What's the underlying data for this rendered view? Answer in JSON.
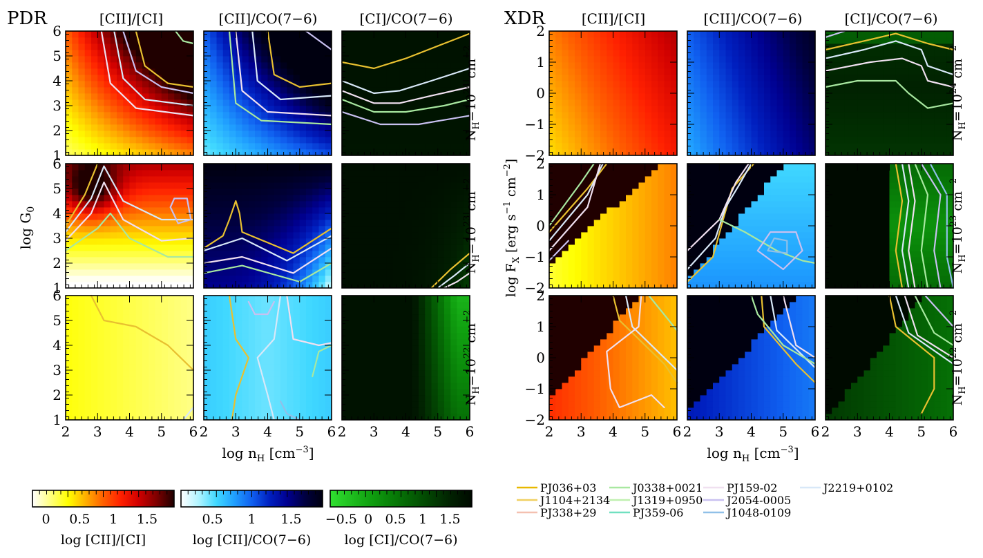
{
  "chart_data": {
    "type": "heatmap",
    "groups": [
      {
        "label": "PDR",
        "y_axis_label": "log G",
        "y_axis_subscript": "0",
        "y_ticks": [
          "1",
          "2",
          "3",
          "4",
          "5",
          "6"
        ]
      },
      {
        "label": "XDR",
        "y_axis_label": "log F",
        "y_axis_subscript": "X",
        "y_axis_units": " [erg s",
        "y_axis_units_sup": "−1",
        "y_axis_units_tail": " cm",
        "y_axis_units_sup2": "−2",
        "y_axis_units_close": "]",
        "y_ticks": [
          "−2",
          "−1",
          "0",
          "1",
          "2"
        ]
      }
    ],
    "column_titles": [
      "[CII]/[CI]",
      "[CII]/CO(7−6)",
      "[CI]/CO(7−6)"
    ],
    "rows": [
      {
        "label_main": "N",
        "label_sub": "H",
        "label_value": "=10",
        "label_exp": "24",
        "label_units": " cm",
        "label_units_exp": "−2"
      },
      {
        "label_main": "N",
        "label_sub": "H",
        "label_value": "=10",
        "label_exp": "23",
        "label_units": " cm",
        "label_units_exp": "−2"
      },
      {
        "label_main": "N",
        "label_sub": "H",
        "label_value": "=10",
        "label_exp": "22",
        "label_units": " cm",
        "label_units_exp": "−2"
      }
    ],
    "x_axis": {
      "label": "log n",
      "subscript": "H",
      "units": " [cm",
      "units_sup": "−3",
      "units_close": "]",
      "ticks": [
        "2",
        "3",
        "4",
        "5",
        "6"
      ],
      "range": [
        2,
        6
      ]
    },
    "y_ranges": {
      "PDR": [
        1,
        6
      ],
      "XDR": [
        -2,
        2
      ]
    },
    "colorbars": [
      {
        "label": "log [CII]/[CI]",
        "ticks": [
          "0",
          "0.5",
          "1",
          "1.5"
        ],
        "range": [
          -0.2,
          1.9
        ],
        "colors": [
          "#ffffff",
          "#ffff80",
          "#ffff00",
          "#ffb000",
          "#ff6000",
          "#ff2000",
          "#d00000",
          "#800000",
          "#200000"
        ]
      },
      {
        "label": "log [CII]/CO(7−6)",
        "ticks": [
          "0.5",
          "1",
          "1.5"
        ],
        "range": [
          0.1,
          1.9
        ],
        "colors": [
          "#ffffff",
          "#b0f4ff",
          "#40d8ff",
          "#20a0ff",
          "#1060f0",
          "#0020c0",
          "#000090",
          "#000040",
          "#000010"
        ]
      },
      {
        "label": "log [CI]/CO(7−6)",
        "ticks": [
          "−0.5",
          "0",
          "0.5",
          "1",
          "1.5"
        ],
        "range": [
          -0.7,
          1.9
        ],
        "colors": [
          "#30e030",
          "#20c020",
          "#10a010",
          "#088008",
          "#046004",
          "#024002",
          "#012001",
          "#000a00"
        ]
      }
    ],
    "legend": [
      {
        "name": "PJ036+03",
        "color": "#e8b800"
      },
      {
        "name": "J1104+2134",
        "color": "#f0d060"
      },
      {
        "name": "PJ338+29",
        "color": "#f4c0b0"
      },
      {
        "name": "J0338+0021",
        "color": "#a8e8a0"
      },
      {
        "name": "J1319+0950",
        "color": "#c0f0b0"
      },
      {
        "name": "PJ359-06",
        "color": "#70e0c0"
      },
      {
        "name": "PJ159-02",
        "color": "#f0e0f0"
      },
      {
        "name": "J2054-0005",
        "color": "#c8c0f0"
      },
      {
        "name": "J1048-0109",
        "color": "#90c0e8"
      },
      {
        "name": "J2219+0102",
        "color": "#d8e8f8"
      }
    ],
    "legend_columns": 4,
    "grid": false
  }
}
